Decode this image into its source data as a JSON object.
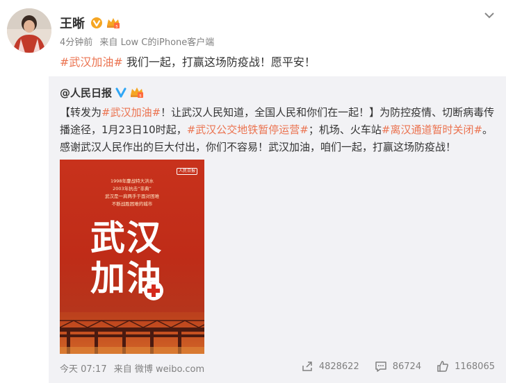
{
  "post": {
    "username": "王晰",
    "meta": {
      "time": "4分钟前",
      "source_prefix": "来自",
      "source": "Low C的iPhone客户端"
    },
    "text": {
      "hashtag": "#武汉加油#",
      "body": " 我们一起，打赢这场防疫战！愿平安！"
    }
  },
  "repost": {
    "user": "@人民日报",
    "text_segments": [
      {
        "text": "【转发为",
        "type": "text"
      },
      {
        "text": "#武汉加油#",
        "type": "hashtag"
      },
      {
        "text": "！让武汉人民知道，全国人民和你们在一起！】为防控疫情、切断病毒传播途径，1月23日10时起，",
        "type": "text"
      },
      {
        "text": "#武汉公交地铁暂停运营#",
        "type": "hashtag"
      },
      {
        "text": "；机场、火车站",
        "type": "text"
      },
      {
        "text": "#离汉通道暂时关闭#",
        "type": "hashtag"
      },
      {
        "text": "。感谢武汉人民作出的巨大付出，你们不容易！武汉加油，咱们一起，打赢这场防疫战！",
        "type": "text"
      }
    ],
    "image": {
      "brand": "人民日报",
      "caption_lines": [
        "1998年鏖战特大洪水",
        "2003年抗击“非典”",
        "武汉是一肩两手于面对困难",
        "不断战胜困难的城市"
      ],
      "big_line1": "武汉",
      "big_line2": "加油"
    },
    "footer": {
      "time": "今天 07:17",
      "source_prefix": "来自",
      "source": "微博 weibo.com"
    },
    "actions": {
      "share_count": "4828622",
      "comment_count": "86724",
      "like_count": "1168065"
    }
  },
  "colors": {
    "hashtag": "#eb7350",
    "repost_bg": "#f2f2f5",
    "meta_text": "#808080",
    "verified_blue": "#2fa6f5",
    "verified_orange": "#f5a623"
  }
}
